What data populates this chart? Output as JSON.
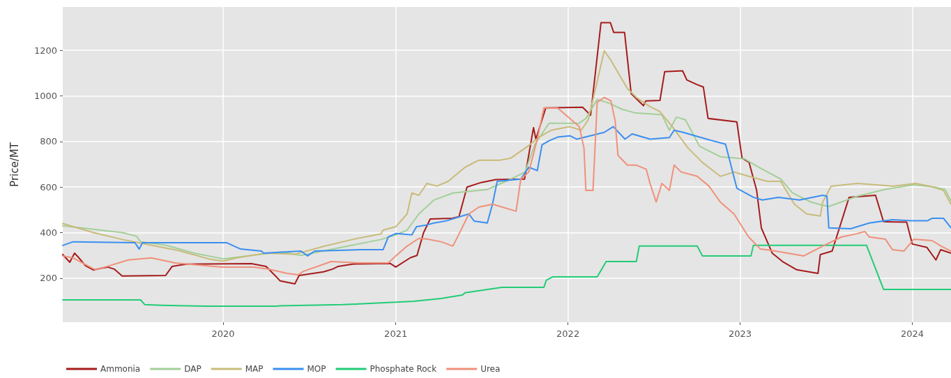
{
  "chart_data": {
    "type": "line",
    "ylabel": "Price/MT",
    "xlim": [
      "2019-01-26",
      "2024-03-23"
    ],
    "xticks": [
      "2020",
      "2021",
      "2022",
      "2023",
      "2024"
    ],
    "ylim": [
      7,
      1390
    ],
    "yticks": [
      200,
      400,
      600,
      800,
      1000,
      1200
    ],
    "grid": true,
    "legend": "bottom left",
    "marker": "none",
    "line_style": "solid",
    "series": [
      {
        "name": "Ammonia",
        "color": "#a51b1b",
        "x": [
          "2019-01-26",
          "2019-02-01",
          "2019-02-10",
          "2019-02-20",
          "2019-03-01",
          "2019-03-15",
          "2019-04-01",
          "2019-04-20",
          "2019-05-01",
          "2019-05-15",
          "2019-06-01",
          "2019-09-01",
          "2019-09-15",
          "2019-10-15",
          "2020-03-01",
          "2020-04-01",
          "2020-04-20",
          "2020-05-01",
          "2020-06-01",
          "2020-06-10",
          "2020-08-01",
          "2020-08-20",
          "2020-09-01",
          "2020-10-01",
          "2020-12-20",
          "2021-01-01",
          "2021-02-01",
          "2021-02-15",
          "2021-03-01",
          "2021-03-15",
          "2021-05-01",
          "2021-05-15",
          "2021-06-01",
          "2021-07-01",
          "2021-08-01",
          "2021-10-01",
          "2021-10-20",
          "2021-10-25",
          "2021-11-15",
          "2022-02-01",
          "2022-02-18",
          "2022-03-12",
          "2022-04-01",
          "2022-04-08",
          "2022-05-01",
          "2022-05-15",
          "2022-06-10",
          "2022-06-15",
          "2022-07-15",
          "2022-07-25",
          "2022-09-01",
          "2022-09-10",
          "2022-10-01",
          "2022-10-15",
          "2022-10-25",
          "2022-12-25",
          "2023-01-05",
          "2023-01-20",
          "2023-02-05",
          "2023-02-15",
          "2023-03-10",
          "2023-04-01",
          "2023-05-01",
          "2023-06-15",
          "2023-06-20",
          "2023-07-15",
          "2023-08-20",
          "2023-10-15",
          "2023-11-01",
          "2023-12-20",
          "2024-01-01",
          "2024-02-01",
          "2024-02-20",
          "2024-03-01",
          "2024-03-23"
        ],
        "values": [
          304,
          290,
          270,
          310,
          290,
          255,
          236,
          245,
          249,
          240,
          210,
          212,
          252,
          262,
          264,
          252,
          212,
          188,
          175,
          212,
          228,
          240,
          252,
          262,
          265,
          249,
          290,
          300,
          400,
          460,
          463,
          470,
          600,
          620,
          633,
          635,
          861,
          810,
          947,
          950,
          915,
          1321,
          1321,
          1278,
          1278,
          1010,
          957,
          978,
          980,
          1106,
          1110,
          1070,
          1050,
          1039,
          901,
          886,
          727,
          708,
          585,
          420,
          310,
          273,
          237,
          221,
          304,
          319,
          555,
          564,
          448,
          446,
          350,
          335,
          280,
          325,
          310
        ]
      },
      {
        "name": "DAP",
        "color": "#a3cf98",
        "x": [
          "2019-01-26",
          "2019-04-01",
          "2019-06-01",
          "2019-07-01",
          "2019-07-10",
          "2019-09-01",
          "2019-11-01",
          "2020-01-01",
          "2020-03-01",
          "2020-05-01",
          "2020-06-15",
          "2020-08-01",
          "2020-10-01",
          "2020-12-01",
          "2021-01-01",
          "2021-01-25",
          "2021-02-19",
          "2021-03-23",
          "2021-05-02",
          "2021-07-14",
          "2021-09-02",
          "2021-10-02",
          "2021-10-23",
          "2021-11-22",
          "2022-01-25",
          "2022-02-08",
          "2022-03-04",
          "2022-03-28",
          "2022-04-26",
          "2022-05-22",
          "2022-07-19",
          "2022-08-04",
          "2022-08-19",
          "2022-09-07",
          "2022-10-07",
          "2022-11-20",
          "2023-01-10",
          "2023-02-02",
          "2023-02-28",
          "2023-03-28",
          "2023-04-22",
          "2023-05-31",
          "2023-06-25",
          "2023-07-08",
          "2023-09-07",
          "2023-11-05",
          "2024-01-04",
          "2024-02-17",
          "2024-03-10",
          "2024-03-23"
        ],
        "values": [
          430,
          415,
          400,
          385,
          360,
          345,
          310,
          285,
          300,
          315,
          300,
          320,
          345,
          370,
          390,
          411,
          482,
          543,
          574,
          589,
          635,
          666,
          788,
          880,
          880,
          901,
          984,
          969,
          941,
          926,
          917,
          849,
          907,
          895,
          779,
          733,
          724,
          696,
          666,
          635,
          574,
          534,
          520,
          515,
          560,
          590,
          610,
          600,
          590,
          540
        ]
      },
      {
        "name": "MAP",
        "color": "#c8bb7a",
        "x": [
          "2019-01-26",
          "2019-04-01",
          "2019-06-01",
          "2019-08-01",
          "2019-10-01",
          "2019-12-01",
          "2020-01-01",
          "2020-02-01",
          "2020-04-01",
          "2020-06-01",
          "2020-08-01",
          "2020-10-01",
          "2020-12-01",
          "2020-12-05",
          "2021-01-01",
          "2021-01-25",
          "2021-02-04",
          "2021-02-19",
          "2021-03-08",
          "2021-03-29",
          "2021-04-22",
          "2021-05-28",
          "2021-06-26",
          "2021-08-10",
          "2021-09-02",
          "2021-10-08",
          "2021-11-01",
          "2021-11-26",
          "2022-01-05",
          "2022-01-29",
          "2022-02-13",
          "2022-03-19",
          "2022-04-02",
          "2022-04-22",
          "2022-05-07",
          "2022-05-26",
          "2022-06-24",
          "2022-07-14",
          "2022-08-08",
          "2022-09-13",
          "2022-10-13",
          "2022-11-20",
          "2022-12-19",
          "2023-01-19",
          "2023-02-28",
          "2023-03-28",
          "2023-04-26",
          "2023-05-22",
          "2023-06-20",
          "2023-06-25",
          "2023-07-13",
          "2023-09-07",
          "2023-11-20",
          "2024-01-08",
          "2024-02-07",
          "2024-03-07",
          "2024-03-23"
        ],
        "values": [
          440,
          400,
          370,
          345,
          320,
          285,
          275,
          290,
          310,
          305,
          340,
          370,
          395,
          411,
          426,
          482,
          574,
          564,
          616,
          604,
          625,
          687,
          718,
          718,
          727,
          779,
          819,
          849,
          865,
          849,
          895,
          1198,
          1156,
          1085,
          1033,
          993,
          953,
          932,
          871,
          770,
          708,
          647,
          666,
          647,
          625,
          625,
          525,
          482,
          473,
          534,
          604,
          616,
          604,
          616,
          604,
          585,
          525
        ]
      },
      {
        "name": "MOP",
        "color": "#3a8ff0",
        "x": [
          "2019-01-26",
          "2019-02-17",
          "2019-06-28",
          "2019-07-07",
          "2019-07-14",
          "2020-01-08",
          "2020-02-07",
          "2020-03-22",
          "2020-03-27",
          "2020-06-14",
          "2020-06-28",
          "2020-07-13",
          "2020-10-16",
          "2020-12-05",
          "2020-12-16",
          "2021-01-01",
          "2021-02-04",
          "2021-02-14",
          "2021-03-04",
          "2021-03-23",
          "2021-04-17",
          "2021-06-05",
          "2021-06-16",
          "2021-07-14",
          "2021-07-25",
          "2021-08-04",
          "2021-09-23",
          "2021-10-10",
          "2021-10-28",
          "2021-11-07",
          "2021-11-22",
          "2021-12-10",
          "2022-01-05",
          "2022-01-20",
          "2022-03-19",
          "2022-04-07",
          "2022-05-02",
          "2022-05-17",
          "2022-06-24",
          "2022-08-04",
          "2022-08-14",
          "2022-09-02",
          "2022-10-22",
          "2022-12-01",
          "2022-12-25",
          "2023-01-29",
          "2023-02-17",
          "2023-03-23",
          "2023-05-07",
          "2023-06-25",
          "2023-07-04",
          "2023-07-08",
          "2023-08-23",
          "2023-10-02",
          "2023-11-20",
          "2023-12-29",
          "2024-02-02",
          "2024-02-12",
          "2024-03-07",
          "2024-03-23"
        ],
        "values": [
          344,
          360,
          356,
          328,
          356,
          356,
          328,
          319,
          310,
          319,
          298,
          319,
          325,
          325,
          381,
          396,
          390,
          426,
          432,
          442,
          451,
          482,
          451,
          442,
          525,
          625,
          635,
          687,
          672,
          785,
          803,
          819,
          825,
          810,
          840,
          865,
          810,
          833,
          810,
          817,
          849,
          840,
          810,
          788,
          595,
          555,
          543,
          555,
          543,
          564,
          560,
          421,
          417,
          442,
          457,
          452,
          452,
          463,
          463,
          421
        ]
      },
      {
        "name": "Phosphate Rock",
        "color": "#22cc77",
        "x": [
          "2019-01-26",
          "2019-07-10",
          "2019-07-19",
          "2019-08-23",
          "2019-11-25",
          "2020-04-25",
          "2020-04-28",
          "2020-09-11",
          "2020-10-16",
          "2021-02-08",
          "2021-04-07",
          "2021-05-22",
          "2021-05-28",
          "2021-08-14",
          "2021-11-11",
          "2021-11-16",
          "2021-11-30",
          "2022-03-04",
          "2022-03-23",
          "2022-05-26",
          "2022-06-01",
          "2022-10-02",
          "2022-10-13",
          "2023-01-24",
          "2023-01-29",
          "2023-09-26",
          "2023-11-01",
          "2024-03-23"
        ],
        "values": [
          105,
          105,
          84,
          81,
          77,
          77,
          79,
          84,
          87,
          99,
          111,
          126,
          136,
          160,
          160,
          191,
          206,
          206,
          273,
          273,
          341,
          341,
          298,
          298,
          344,
          344,
          151,
          151
        ]
      },
      {
        "name": "Urea",
        "color": "#f0907a",
        "x": [
          "2019-01-26",
          "2019-02-17",
          "2019-04-05",
          "2019-04-26",
          "2019-06-14",
          "2019-08-02",
          "2019-09-21",
          "2019-12-29",
          "2020-03-06",
          "2020-04-05",
          "2020-05-16",
          "2020-06-08",
          "2020-06-19",
          "2020-08-17",
          "2020-10-16",
          "2020-12-16",
          "2021-01-01",
          "2021-01-25",
          "2021-02-19",
          "2021-03-08",
          "2021-04-07",
          "2021-05-02",
          "2021-05-17",
          "2021-06-05",
          "2021-06-26",
          "2021-07-25",
          "2021-09-13",
          "2021-09-23",
          "2021-10-10",
          "2021-10-28",
          "2021-11-11",
          "2021-12-10",
          "2022-01-25",
          "2022-02-04",
          "2022-02-08",
          "2022-02-23",
          "2022-03-04",
          "2022-03-19",
          "2022-04-02",
          "2022-04-11",
          "2022-04-17",
          "2022-05-07",
          "2022-05-26",
          "2022-06-16",
          "2022-06-24",
          "2022-07-07",
          "2022-07-19",
          "2022-08-04",
          "2022-08-14",
          "2022-08-29",
          "2022-10-02",
          "2022-10-27",
          "2022-11-20",
          "2022-12-19",
          "2023-01-19",
          "2023-02-13",
          "2023-03-17",
          "2023-05-16",
          "2023-06-25",
          "2023-08-04",
          "2023-09-07",
          "2023-09-22",
          "2023-10-02",
          "2023-11-05",
          "2023-11-20",
          "2023-12-14",
          "2024-01-04",
          "2024-02-12",
          "2024-03-02",
          "2024-03-23"
        ],
        "values": [
          298,
          289,
          237,
          249,
          280,
          289,
          267,
          249,
          249,
          240,
          221,
          215,
          230,
          273,
          267,
          267,
          298,
          341,
          375,
          372,
          360,
          341,
          402,
          482,
          512,
          525,
          494,
          635,
          666,
          810,
          947,
          947,
          865,
          770,
          585,
          585,
          972,
          993,
          978,
          891,
          739,
          696,
          696,
          678,
          616,
          534,
          616,
          585,
          696,
          666,
          647,
          604,
          534,
          482,
          381,
          328,
          319,
          298,
          341,
          381,
          396,
          405,
          381,
          371,
          325,
          319,
          371,
          365,
          341,
          319
        ]
      }
    ]
  }
}
